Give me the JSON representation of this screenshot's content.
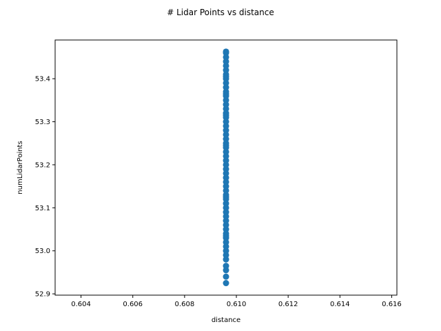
{
  "chart_data": {
    "type": "scatter",
    "title": "# Lidar Points vs distance",
    "xlabel": "distance",
    "ylabel": "numLidarPoints",
    "xlim": [
      0.603,
      0.6162
    ],
    "ylim": [
      52.897,
      53.49
    ],
    "xticks": [
      0.604,
      0.606,
      0.608,
      0.61,
      0.612,
      0.614,
      0.616
    ],
    "xtick_labels": [
      "0.604",
      "0.606",
      "0.608",
      "0.610",
      "0.612",
      "0.614",
      "0.616"
    ],
    "yticks": [
      52.9,
      53.0,
      53.1,
      53.2,
      53.3,
      53.4
    ],
    "ytick_labels": [
      "52.9",
      "53.0",
      "53.1",
      "53.2",
      "53.3",
      "53.4"
    ],
    "grid": false,
    "color": "#1f77b4",
    "x": [
      0.6096,
      0.6096,
      0.6096,
      0.6096,
      0.6096,
      0.6096,
      0.6096,
      0.6096,
      0.6096,
      0.6096,
      0.6096,
      0.6096,
      0.6096,
      0.6096,
      0.6096,
      0.6096,
      0.6096,
      0.6096,
      0.6096,
      0.6096,
      0.6096,
      0.6096,
      0.6096,
      0.6096,
      0.6096,
      0.6096,
      0.6096,
      0.6096,
      0.6096,
      0.6096,
      0.6096,
      0.6096,
      0.6096,
      0.6096,
      0.6096,
      0.6096,
      0.6096,
      0.6096,
      0.6096,
      0.6096,
      0.6096,
      0.6096,
      0.6096,
      0.6096,
      0.6096,
      0.6096,
      0.6096,
      0.6096,
      0.6096,
      0.6096,
      0.6096,
      0.6096,
      0.6096,
      0.6096,
      0.6096,
      0.6096,
      0.6096,
      0.6096,
      0.6096,
      0.6096
    ],
    "y": [
      52.925,
      52.94,
      52.955,
      52.965,
      52.98,
      52.99,
      53.0,
      53.01,
      53.02,
      53.03,
      53.04,
      53.05,
      53.06,
      53.07,
      53.08,
      53.09,
      53.1,
      53.11,
      53.12,
      53.13,
      53.14,
      53.15,
      53.16,
      53.17,
      53.18,
      53.19,
      53.2,
      53.21,
      53.22,
      53.23,
      53.24,
      53.25,
      53.26,
      53.27,
      53.28,
      53.29,
      53.3,
      53.31,
      53.32,
      53.33,
      53.34,
      53.35,
      53.36,
      53.37,
      53.38,
      53.39,
      53.4,
      53.41,
      53.42,
      53.43,
      53.44,
      53.45,
      53.46,
      53.463,
      53.035,
      53.125,
      53.245,
      53.315,
      53.365,
      53.405
    ]
  }
}
